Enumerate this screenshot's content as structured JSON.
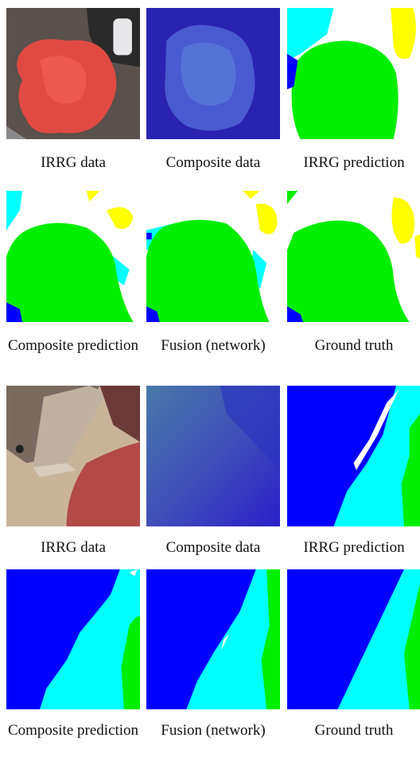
{
  "figure": {
    "captions": [
      "IRRG data",
      "Composite data",
      "IRRG prediction",
      "Composite prediction",
      "Fusion (network)",
      "Ground truth",
      "IRRG data",
      "Composite data",
      "IRRG prediction",
      "Composite prediction",
      "Fusion (network)",
      "Ground truth"
    ]
  }
}
